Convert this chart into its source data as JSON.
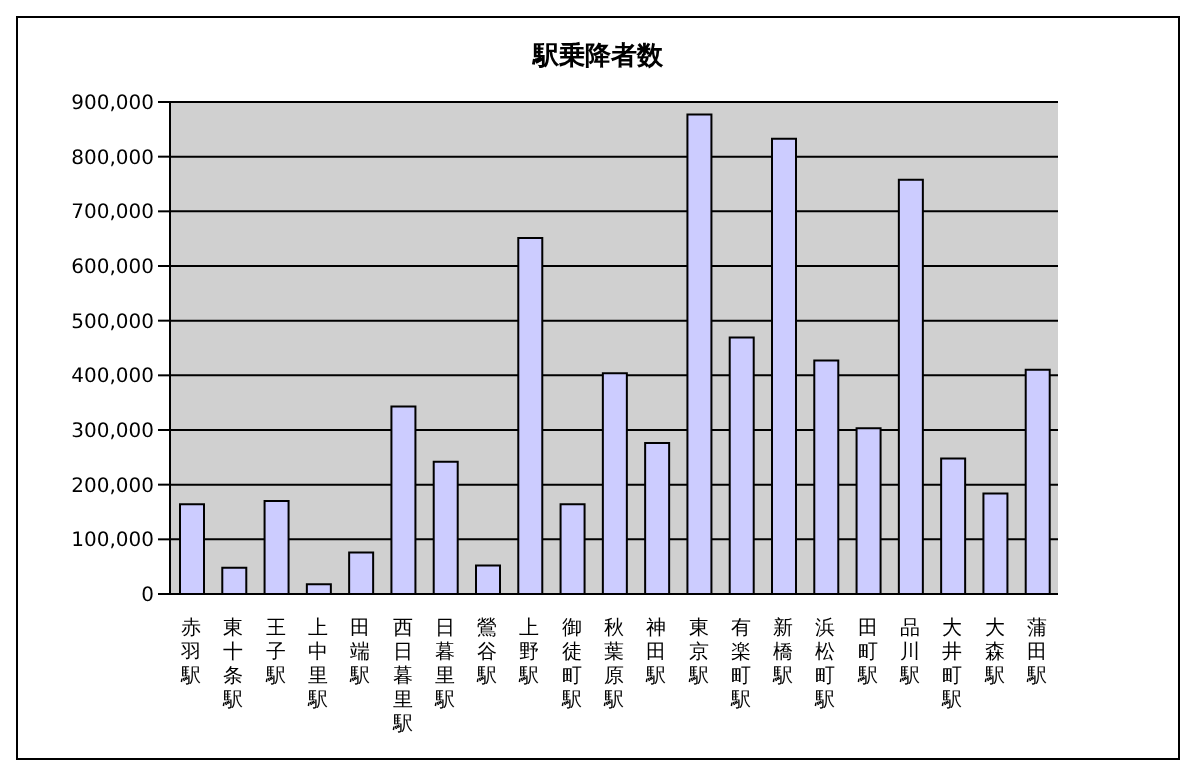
{
  "chart_data": {
    "type": "bar",
    "title": "駅乗降者数",
    "categories": [
      "赤羽駅",
      "東十条駅",
      "王子駅",
      "上中里駅",
      "田端駅",
      "西日暮里駅",
      "日暮里駅",
      "鶯谷駅",
      "上野駅",
      "御徒町駅",
      "秋葉原駅",
      "神田駅",
      "東京駅",
      "有楽町駅",
      "新橋駅",
      "浜松町駅",
      "田町駅",
      "品川駅",
      "大井町駅",
      "大森駅",
      "蒲田駅"
    ],
    "values": [
      164000,
      48000,
      170000,
      18000,
      76000,
      343000,
      242000,
      52000,
      651000,
      164000,
      404000,
      276000,
      877000,
      469000,
      833000,
      427000,
      303000,
      758000,
      248000,
      184000,
      410000
    ],
    "color": "#ccccff",
    "ylim": [
      0,
      900000
    ],
    "yticks": [
      0,
      {
        "value": 100000,
        "label": "100,000"
      },
      {
        "value": 200000,
        "label": "200,000"
      },
      {
        "value": 300000,
        "label": "300,000"
      },
      {
        "value": 400000,
        "label": "400,000"
      },
      {
        "value": 500000,
        "label": "500,000"
      },
      {
        "value": 600000,
        "label": "600,000"
      },
      {
        "value": 700000,
        "label": "700,000"
      },
      {
        "value": 800000,
        "label": "800,000"
      },
      {
        "value": 900000,
        "label": "900,000"
      }
    ],
    "grid": "y",
    "legend": false
  }
}
